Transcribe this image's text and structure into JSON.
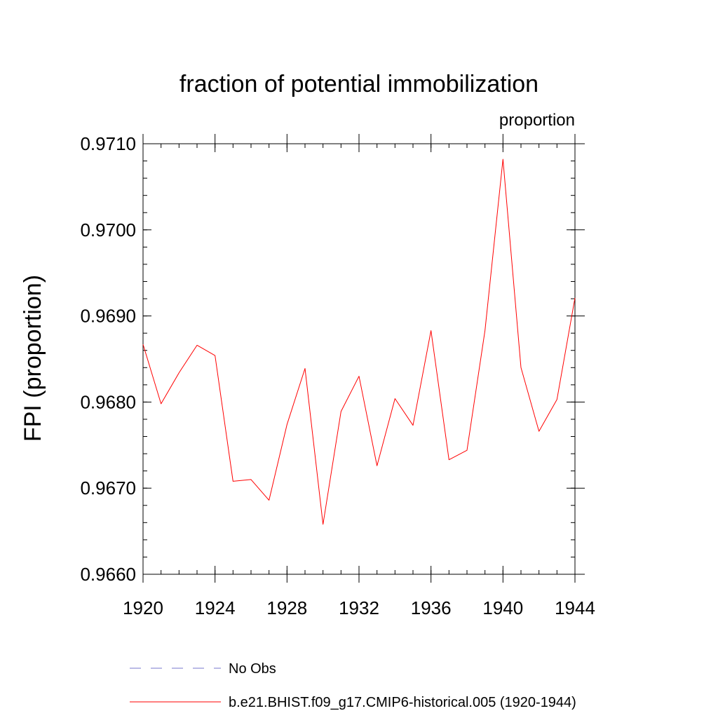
{
  "chart_data": {
    "type": "line",
    "title": "fraction of potential immobilization",
    "units_label": "proportion",
    "ylabel": "FPI  (proportion)",
    "xlabel": "",
    "xlim": [
      1920,
      1944
    ],
    "ylim": [
      0.966,
      0.971
    ],
    "x_ticks": [
      "1920",
      "1924",
      "1928",
      "1932",
      "1936",
      "1940",
      "1944"
    ],
    "y_ticks": [
      "0.9660",
      "0.9670",
      "0.9680",
      "0.9690",
      "0.9700",
      "0.9710"
    ],
    "x": [
      1920,
      1921,
      1922,
      1923,
      1924,
      1925,
      1926,
      1927,
      1928,
      1929,
      1930,
      1931,
      1932,
      1933,
      1934,
      1935,
      1936,
      1937,
      1938,
      1939,
      1940,
      1941,
      1942,
      1943,
      1944
    ],
    "series": [
      {
        "name": "b.e21.BHIST.f09_g17.CMIP6-historical.005 (1920-1944)",
        "color": "#ff0000",
        "values": [
          0.96867,
          0.96798,
          0.96834,
          0.96866,
          0.96854,
          0.96708,
          0.9671,
          0.96686,
          0.96774,
          0.96839,
          0.96658,
          0.96789,
          0.9683,
          0.96726,
          0.96804,
          0.96773,
          0.96883,
          0.96733,
          0.96744,
          0.96883,
          0.97082,
          0.9684,
          0.96766,
          0.96803,
          0.96921
        ]
      }
    ],
    "legend": {
      "placement": "bottom",
      "entries": [
        {
          "label": "No Obs",
          "color": "#7777cc",
          "style": "dashed"
        },
        {
          "label": "b.e21.BHIST.f09_g17.CMIP6-historical.005 (1920-1944)",
          "color": "#ff0000",
          "style": "solid"
        }
      ]
    },
    "grid": false
  }
}
